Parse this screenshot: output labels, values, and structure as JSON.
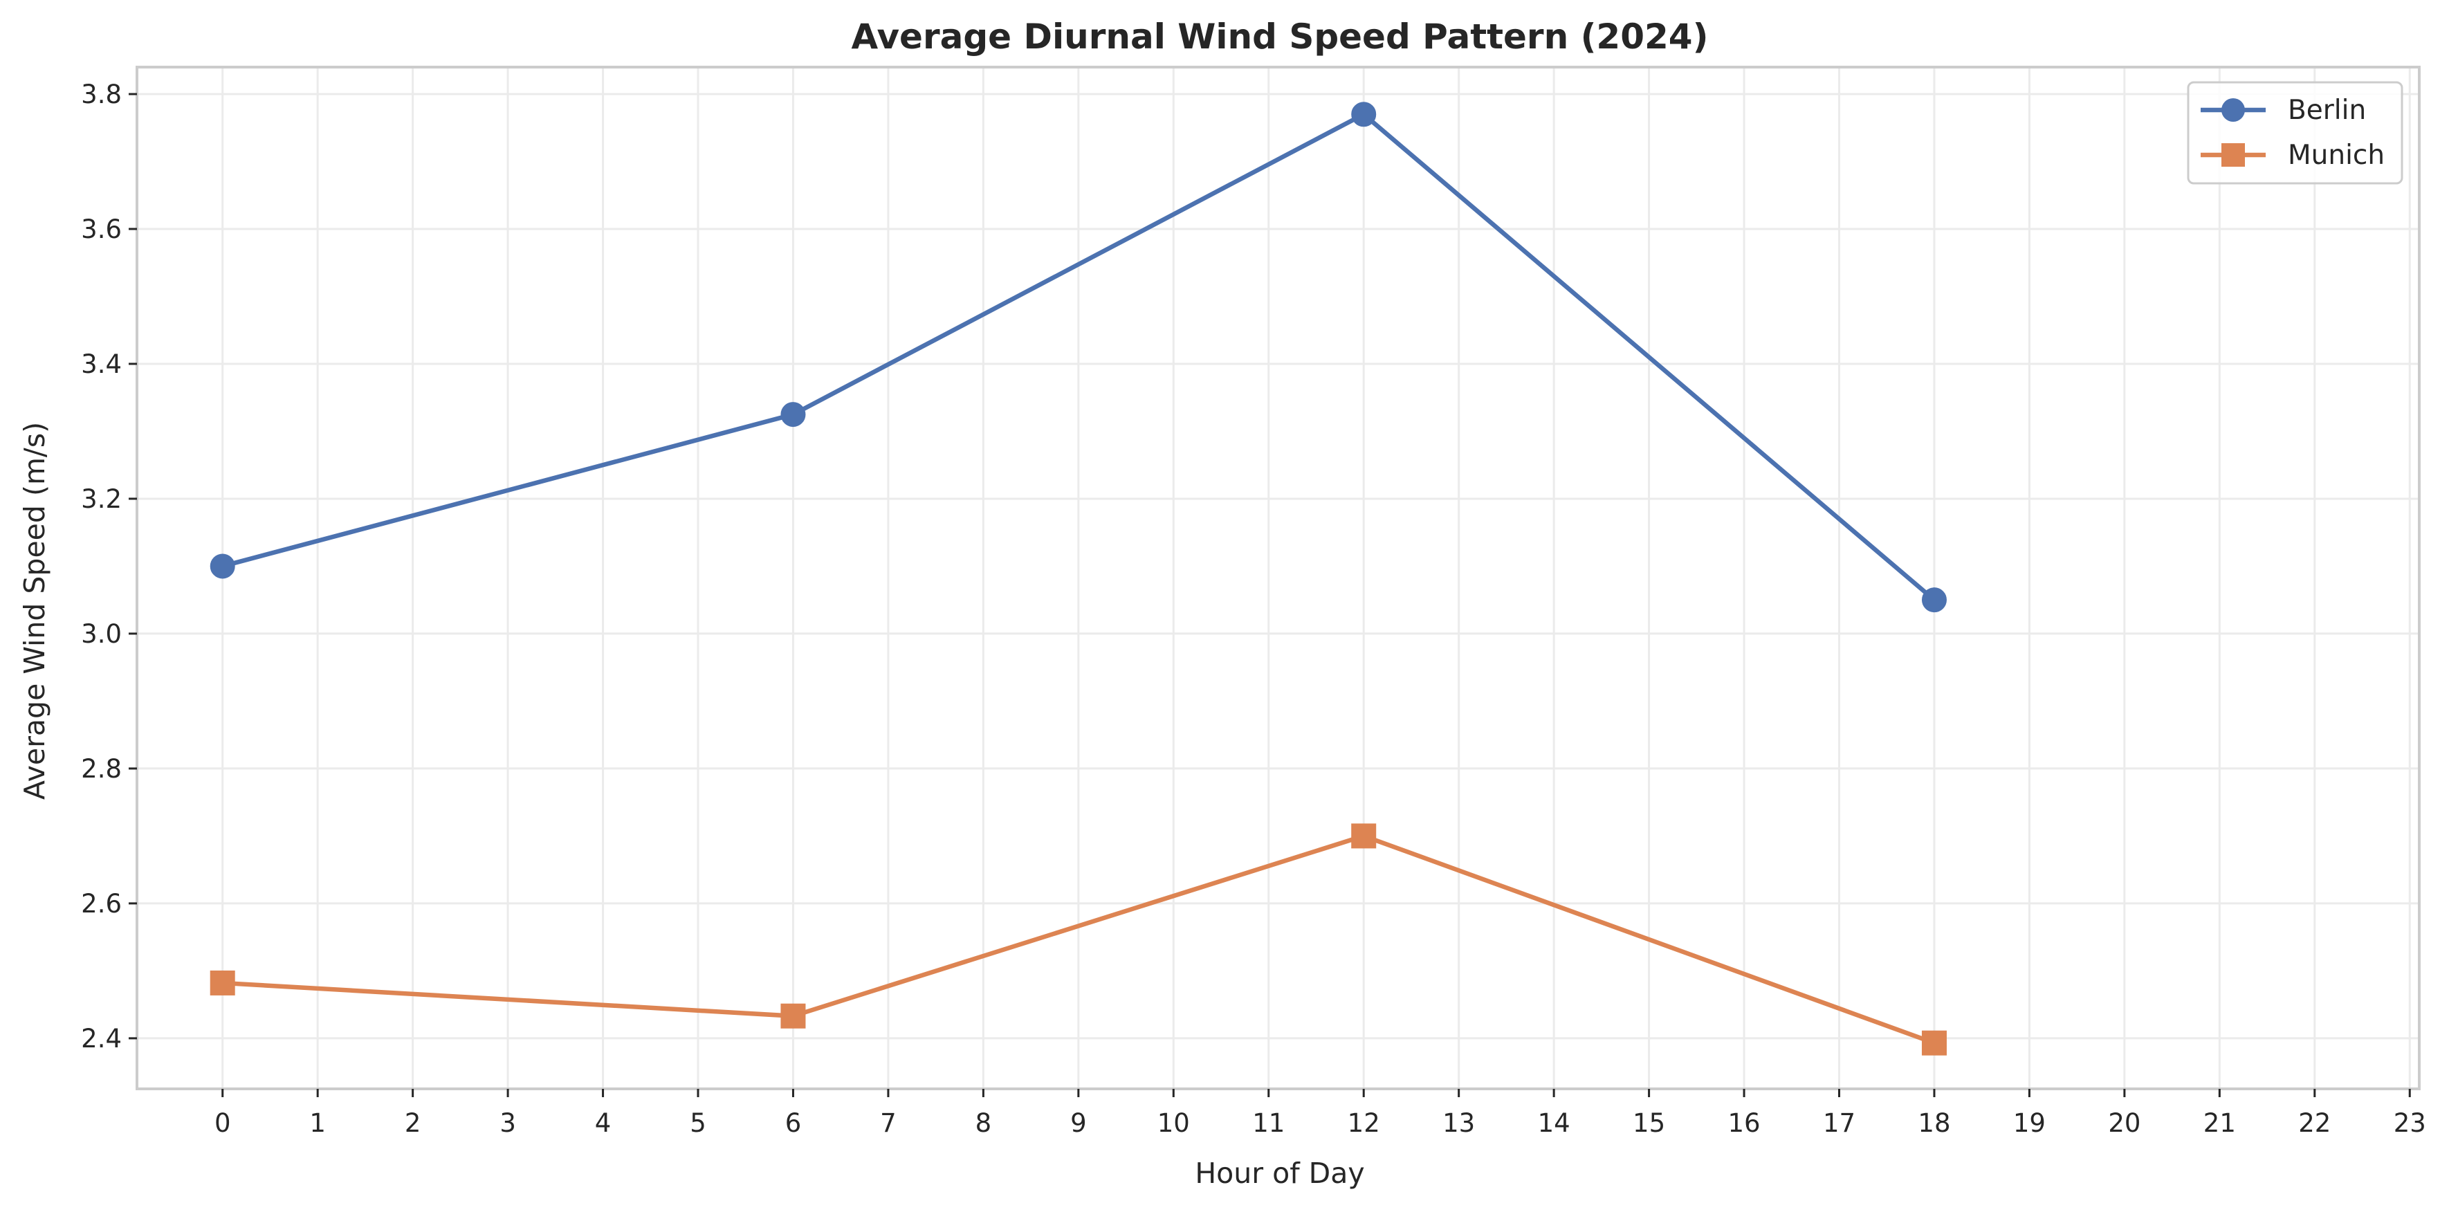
{
  "chart_data": {
    "type": "line",
    "title": "Average Diurnal Wind Speed Pattern (2024)",
    "xlabel": "Hour of Day",
    "ylabel": "Average Wind Speed (m/s)",
    "xlim": [
      -0.9,
      23.1
    ],
    "ylim": [
      2.325,
      3.84
    ],
    "xticks": [
      0,
      1,
      2,
      3,
      4,
      5,
      6,
      7,
      8,
      9,
      10,
      11,
      12,
      13,
      14,
      15,
      16,
      17,
      18,
      19,
      20,
      21,
      22,
      23
    ],
    "yticks": [
      2.4,
      2.6,
      2.8,
      3.0,
      3.2,
      3.4,
      3.6,
      3.8
    ],
    "ytick_labels": [
      "2.4",
      "2.6",
      "2.8",
      "3.0",
      "3.2",
      "3.4",
      "3.6",
      "3.8"
    ],
    "grid": true,
    "legend_position": "top-right",
    "x": [
      0,
      6,
      12,
      18
    ],
    "series": [
      {
        "name": "Berlin",
        "values": [
          3.1,
          3.325,
          3.77,
          3.05
        ],
        "color": "#4c72b0",
        "marker": "circle"
      },
      {
        "name": "Munich",
        "values": [
          2.482,
          2.433,
          2.7,
          2.393
        ],
        "color": "#dd8452",
        "marker": "square"
      }
    ]
  }
}
